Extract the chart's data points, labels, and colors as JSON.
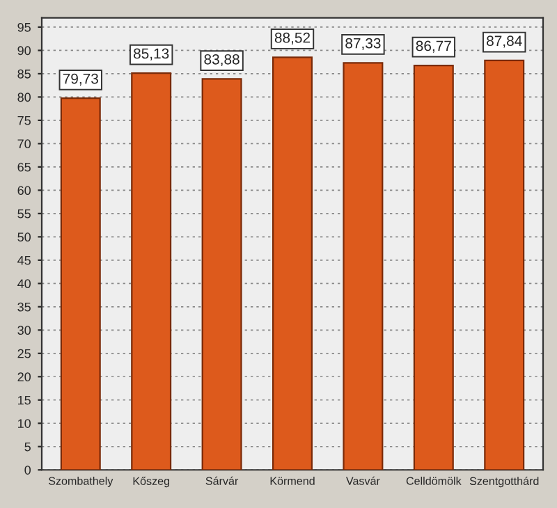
{
  "chart_data": {
    "type": "bar",
    "categories": [
      "Szombathely",
      "Kőszeg",
      "Sárvár",
      "Körmend",
      "Vasvár",
      "Celldömölk",
      "Szentgotthárd"
    ],
    "values": [
      79.73,
      85.13,
      83.88,
      88.52,
      87.33,
      86.77,
      87.84
    ],
    "value_labels": [
      "79,73",
      "85,13",
      "83,88",
      "88,52",
      "87,33",
      "86,77",
      "87,84"
    ],
    "color": "#dd5a1c",
    "ylim": [
      0,
      97
    ],
    "yticks": [
      0,
      5,
      10,
      15,
      20,
      25,
      30,
      35,
      40,
      45,
      50,
      55,
      60,
      65,
      70,
      75,
      80,
      85,
      90,
      95
    ],
    "grid": "y",
    "legend": false
  }
}
